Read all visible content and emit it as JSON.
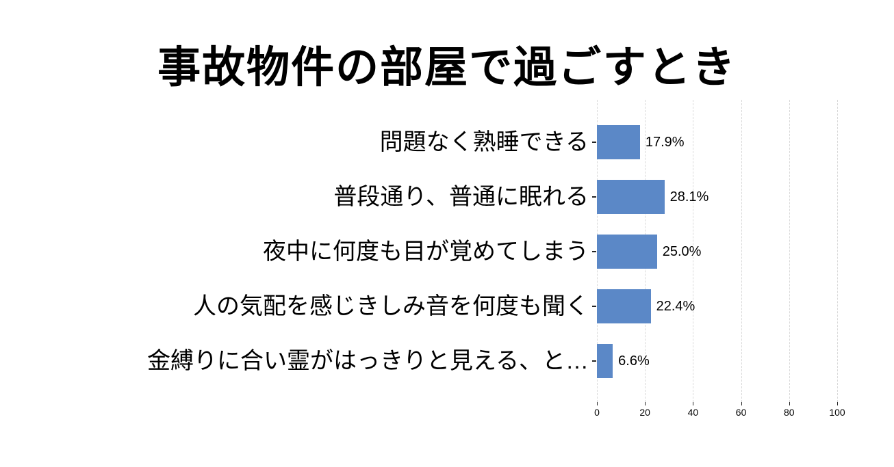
{
  "title": "事故物件の部屋で過ごすとき",
  "colors": {
    "bar": "#5b88c7",
    "gridline": "#d9d9d9",
    "tick": "#262626",
    "text": "#000000",
    "background": "#ffffff"
  },
  "chart_data": {
    "type": "bar",
    "orientation": "horizontal",
    "title": "事故物件の部屋で過ごすとき",
    "categories": [
      "問題なく熟睡できる",
      "普段通り、普通に眠れる",
      "夜中に何度も目が覚めてしまう",
      "人の気配を感じきしみ音を何度も聞く",
      "金縛りに合い霊がはっきりと見える、と…"
    ],
    "values": [
      17.9,
      28.1,
      25.0,
      22.4,
      6.6
    ],
    "value_labels": [
      "17.9%",
      "28.1%",
      "25.0%",
      "22.4%",
      "6.6%"
    ],
    "xlabel": "",
    "ylabel": "",
    "xlim": [
      0,
      100
    ],
    "x_ticks": [
      0,
      20,
      40,
      60,
      80,
      100
    ],
    "grid": "vertical-dashed",
    "legend": "none"
  }
}
